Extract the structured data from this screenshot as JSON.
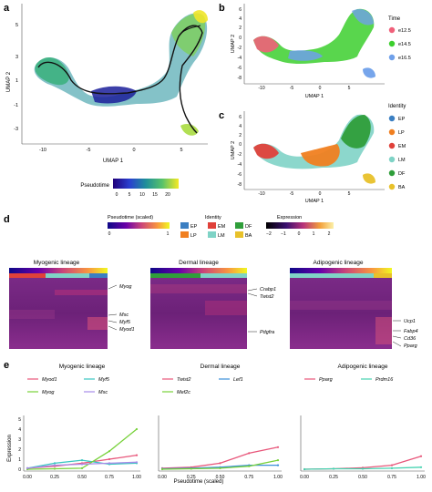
{
  "panels": {
    "a": {
      "label": "a",
      "xlabel": "UMAP 1",
      "ylabel": "UMAP 2",
      "xticks": [
        "-10",
        "-5",
        "0",
        "5"
      ],
      "yticks": [
        "5",
        "3",
        "1",
        "-1",
        "-3"
      ],
      "colorbar_label": "Pseudotime",
      "colorbar_ticks": [
        "0",
        "5",
        "10",
        "15",
        "20"
      ]
    },
    "b": {
      "label": "b",
      "xlabel": "UMAP 1",
      "ylabel": "UMAP 2",
      "xticks": [
        "-10",
        "-5",
        "0",
        "5"
      ],
      "yticks": [
        "6",
        "4",
        "2",
        "0",
        "-2",
        "-4",
        "-6",
        "-8"
      ],
      "legend_title": "Time",
      "legend": [
        {
          "label": "e12.5",
          "color": "#f0607a"
        },
        {
          "label": "e14.5",
          "color": "#3ccf2e"
        },
        {
          "label": "e16.5",
          "color": "#6fa0ea"
        }
      ]
    },
    "c": {
      "label": "c",
      "xlabel": "UMAP 1",
      "ylabel": "UMAP 2",
      "xticks": [
        "-10",
        "-5",
        "0",
        "5"
      ],
      "yticks": [
        "6",
        "4",
        "2",
        "0",
        "-2",
        "-4",
        "-6",
        "-8"
      ],
      "legend_title": "Identity",
      "legend": [
        {
          "label": "EP",
          "color": "#3b7fc2"
        },
        {
          "label": "LP",
          "color": "#f07f20"
        },
        {
          "label": "EM",
          "color": "#e0413a"
        },
        {
          "label": "LM",
          "color": "#7fd3c6"
        },
        {
          "label": "DF",
          "color": "#2f9e3a"
        },
        {
          "label": "BA",
          "color": "#e8c12a"
        }
      ]
    },
    "d": {
      "label": "d",
      "pseudotime_title": "Pseudotime (scaled)",
      "pseudotime_ticks": [
        "0",
        "1"
      ],
      "identity_title": "Identity",
      "identity": [
        {
          "label": "EP",
          "color": "#3b7fc2"
        },
        {
          "label": "EM",
          "color": "#e0413a"
        },
        {
          "label": "DF",
          "color": "#2f9e3a"
        },
        {
          "label": "LP",
          "color": "#f07f20"
        },
        {
          "label": "LM",
          "color": "#7fd3c6"
        },
        {
          "label": "BA",
          "color": "#e8c12a"
        }
      ],
      "expression_title": "Expression",
      "expression_ticks": [
        "−2",
        "−1",
        "0",
        "1",
        "2"
      ],
      "heatmaps": [
        {
          "title": "Myogenic lineage",
          "genes": [
            "Myog",
            "Msc",
            "Myf5",
            "Myod1"
          ]
        },
        {
          "title": "Dermal lineage",
          "genes": [
            "Crabp1",
            "Twist2",
            "Pdgfra"
          ]
        },
        {
          "title": "Adipogenic lineage",
          "genes": [
            "Ucp1",
            "Fabp4",
            "Cd36",
            "Pparg"
          ]
        }
      ]
    },
    "e": {
      "label": "e",
      "ylabel": "Expression",
      "xlabel": "Pseudotime (scaled)"
    }
  },
  "chart_data": [
    {
      "type": "line",
      "title": "Myogenic lineage",
      "xlabel": "",
      "ylabel": "Expression",
      "x": [
        0.0,
        0.25,
        0.5,
        0.75,
        1.0
      ],
      "xticks": [
        "0.00",
        "0.25",
        "0.50",
        "0.75",
        "1.00"
      ],
      "yticks": [
        "0",
        "1",
        "2",
        "3",
        "4",
        "5"
      ],
      "ylim": [
        0,
        5
      ],
      "series": [
        {
          "name": "Myod1",
          "color": "#e8567a",
          "values": [
            0.1,
            0.3,
            0.6,
            1.0,
            1.4
          ]
        },
        {
          "name": "Myf5",
          "color": "#38c6c0",
          "values": [
            0.1,
            0.6,
            0.9,
            0.5,
            0.6
          ]
        },
        {
          "name": "Myog",
          "color": "#77d13a",
          "values": [
            0.0,
            0.05,
            0.1,
            1.8,
            4.0
          ]
        },
        {
          "name": "Msc",
          "color": "#a78be8",
          "values": [
            0.1,
            0.4,
            0.5,
            0.6,
            0.7
          ]
        }
      ]
    },
    {
      "type": "line",
      "title": "Dermal lineage",
      "xlabel": "Pseudotime (scaled)",
      "ylabel": "",
      "x": [
        0.0,
        0.25,
        0.5,
        0.75,
        1.0
      ],
      "xticks": [
        "0.00",
        "0.25",
        "0.50",
        "0.75",
        "1.00"
      ],
      "ylim": [
        0,
        5
      ],
      "series": [
        {
          "name": "Twist2",
          "color": "#e8567a",
          "values": [
            0.1,
            0.2,
            0.6,
            1.6,
            2.2
          ]
        },
        {
          "name": "Lef1",
          "color": "#3b8fd8",
          "values": [
            0.05,
            0.1,
            0.2,
            0.4,
            0.4
          ]
        },
        {
          "name": "Mef2c",
          "color": "#77d13a",
          "values": [
            0.0,
            0.05,
            0.1,
            0.3,
            0.9
          ]
        }
      ]
    },
    {
      "type": "line",
      "title": "Adipogenic lineage",
      "xlabel": "",
      "ylabel": "",
      "x": [
        0.0,
        0.25,
        0.5,
        0.75,
        1.0
      ],
      "xticks": [
        "0.00",
        "0.25",
        "0.50",
        "0.75",
        "1.00"
      ],
      "ylim": [
        0,
        5
      ],
      "series": [
        {
          "name": "Pparg",
          "color": "#e8567a",
          "values": [
            0.0,
            0.05,
            0.15,
            0.4,
            1.3
          ]
        },
        {
          "name": "Prdm16",
          "color": "#45d3b0",
          "values": [
            0.0,
            0.05,
            0.05,
            0.1,
            0.2
          ]
        }
      ]
    }
  ]
}
